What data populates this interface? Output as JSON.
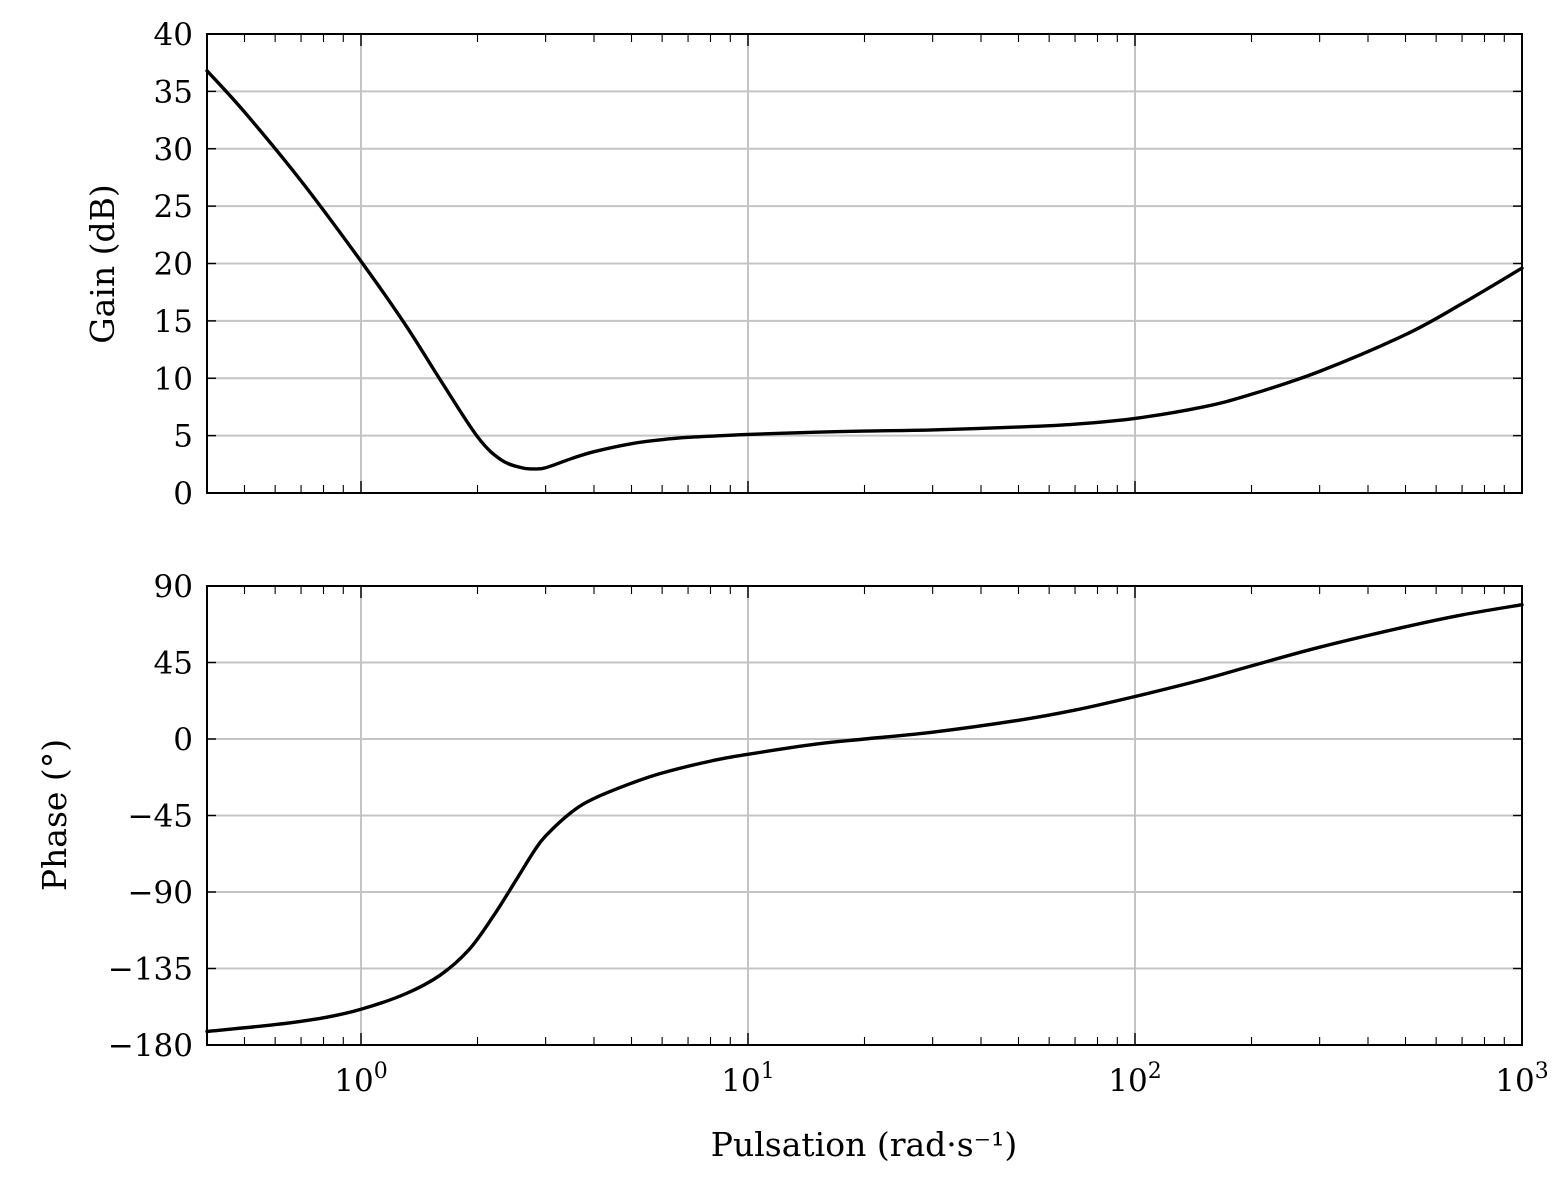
{
  "chart_data": [
    {
      "type": "line",
      "id": "gain",
      "ylabel": "Gain (dB)",
      "x_scale": "log",
      "xlim": [
        0.4,
        1000
      ],
      "ylim": [
        0,
        40
      ],
      "yticks": [
        0,
        5,
        10,
        15,
        20,
        25,
        30,
        35,
        40
      ],
      "ytick_labels": [
        "0",
        "5",
        "10",
        "15",
        "20",
        "25",
        "30",
        "35",
        "40"
      ],
      "grid": true,
      "series": [
        {
          "x": [
            0.4,
            0.5,
            0.7,
            1.0,
            1.3,
            1.6,
            2.0,
            2.3,
            2.6,
            2.8,
            3.0,
            3.5,
            4.0,
            5.0,
            6.0,
            7.0,
            8.0,
            10,
            15,
            20,
            30,
            50,
            70,
            100,
            150,
            200,
            300,
            500,
            700,
            1000
          ],
          "y": [
            36.8,
            33.2,
            27.2,
            20.2,
            14.7,
            9.9,
            4.9,
            2.9,
            2.2,
            2.1,
            2.2,
            3.0,
            3.6,
            4.3,
            4.65,
            4.85,
            4.95,
            5.1,
            5.3,
            5.4,
            5.5,
            5.75,
            6.0,
            6.5,
            7.5,
            8.6,
            10.6,
            13.8,
            16.5,
            19.6
          ]
        }
      ]
    },
    {
      "type": "line",
      "id": "phase",
      "xlabel": "Pulsation (rad·s⁻¹)",
      "ylabel": "Phase (°)",
      "x_scale": "log",
      "xlim": [
        0.4,
        1000
      ],
      "ylim": [
        -180,
        90
      ],
      "yticks": [
        -180,
        -135,
        -90,
        -45,
        0,
        45,
        90
      ],
      "ytick_labels": [
        "−180",
        "−135",
        "−90",
        "−45",
        "0",
        "45",
        "90"
      ],
      "xticks": [
        1,
        10,
        100,
        1000
      ],
      "xtick_labels": [
        {
          "base": "10",
          "exp": "0"
        },
        {
          "base": "10",
          "exp": "1"
        },
        {
          "base": "10",
          "exp": "2"
        },
        {
          "base": "10",
          "exp": "3"
        }
      ],
      "grid": true,
      "series": [
        {
          "x": [
            0.4,
            0.6,
            0.8,
            1.0,
            1.3,
            1.6,
            1.9,
            2.2,
            2.5,
            2.8,
            3.0,
            3.5,
            4.0,
            5.0,
            6.0,
            8.0,
            10,
            15,
            20,
            30,
            50,
            70,
            100,
            150,
            200,
            300,
            500,
            700,
            1000
          ],
          "y": [
            -172,
            -168,
            -164,
            -159,
            -150,
            -139,
            -124,
            -104,
            -84,
            -66,
            -57,
            -43,
            -35,
            -26,
            -20,
            -13,
            -9,
            -3,
            0,
            4,
            11,
            17,
            25,
            35,
            43,
            54,
            66,
            73,
            79
          ]
        }
      ]
    }
  ]
}
